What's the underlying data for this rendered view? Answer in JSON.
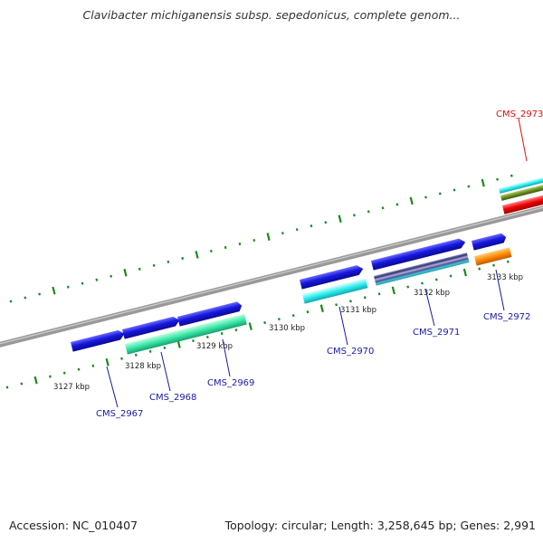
{
  "header": {
    "title": "Clavibacter michiganensis subsp. sepedonicus, complete genom..."
  },
  "footer": {
    "accession": "Accession: NC_010407",
    "summary": "Topology: circular; Length: 3,258,645 bp; Genes: 2,991"
  },
  "scale_labels": [
    "3127 kbp",
    "3128 kbp",
    "3129 kbp",
    "3130 kbp",
    "3131 kbp",
    "3132 kbp",
    "3133 kbp"
  ],
  "genes": [
    "CMS_2967",
    "CMS_2968",
    "CMS_2969",
    "CMS_2970",
    "CMS_2971",
    "CMS_2972",
    "CMS_2973"
  ],
  "colors": {
    "backbone": "#888888",
    "tick": "#1a8a1a",
    "gene_forward": "#1515d8",
    "gene_label": "#1a1aa8",
    "highlight_label": "#dd1111",
    "feature_seafoam": "#2ee8a8",
    "feature_cyan": "#22eeee",
    "feature_orange": "#ff8a00",
    "feature_red": "#ee0000",
    "feature_olive": "#6b8e23"
  }
}
